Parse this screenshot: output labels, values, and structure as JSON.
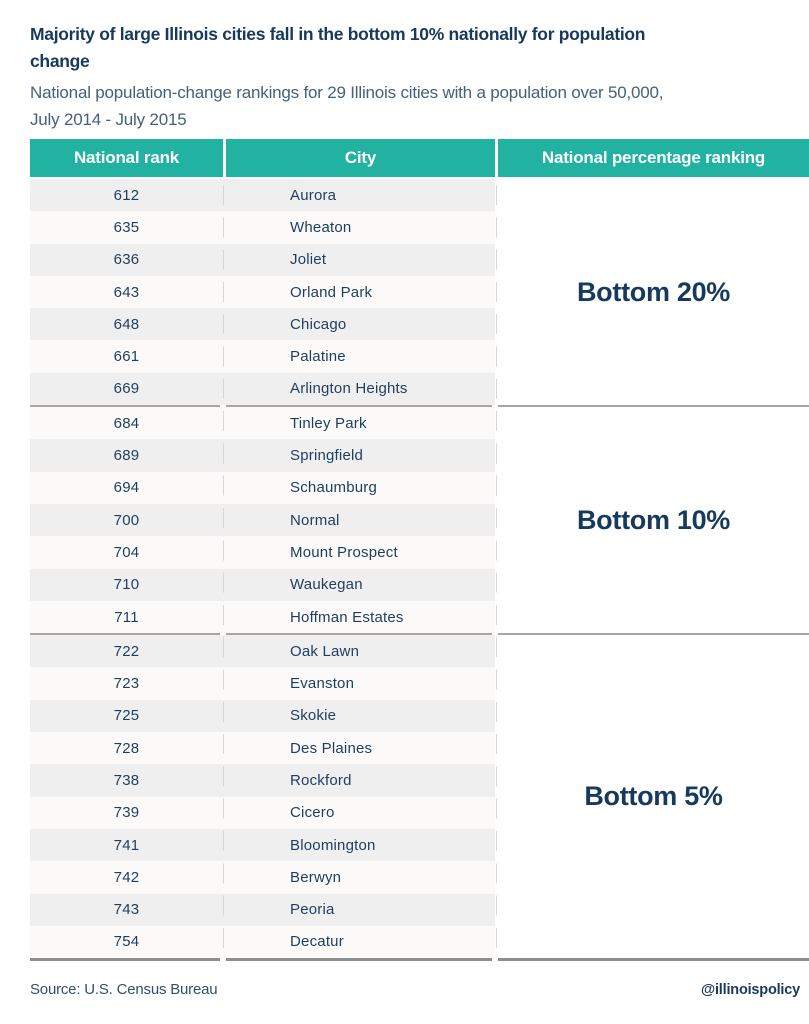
{
  "colors": {
    "header_teal": "#21b2a1",
    "title_navy": "#17395c",
    "subtitle_slate": "#44617a",
    "row_stripe_gray": "#efefef",
    "row_stripe_white": "#fbfaf9",
    "separator_gray": "#a6a6a6"
  },
  "header": {
    "title_lines": [
      "Majority of large Illinois cities fall in the bottom 10% nationally for population",
      "change"
    ],
    "subtitle_lines": [
      "National population-change rankings for 29 Illinois cities with a population over 50,000,",
      "July 2014 - July 2015"
    ]
  },
  "table": {
    "columns": [
      "National rank",
      "City",
      "National percentage ranking"
    ],
    "groups": [
      {
        "label": "Bottom 20%",
        "rows": [
          {
            "rank": "612",
            "city": "Aurora"
          },
          {
            "rank": "635",
            "city": "Wheaton"
          },
          {
            "rank": "636",
            "city": "Joliet"
          },
          {
            "rank": "643",
            "city": "Orland Park"
          },
          {
            "rank": "648",
            "city": "Chicago"
          },
          {
            "rank": "661",
            "city": "Palatine"
          },
          {
            "rank": "669",
            "city": "Arlington Heights"
          }
        ]
      },
      {
        "label": "Bottom 10%",
        "rows": [
          {
            "rank": "684",
            "city": "Tinley Park"
          },
          {
            "rank": "689",
            "city": "Springfield"
          },
          {
            "rank": "694",
            "city": "Schaumburg"
          },
          {
            "rank": "700",
            "city": "Normal"
          },
          {
            "rank": "704",
            "city": "Mount Prospect"
          },
          {
            "rank": "710",
            "city": "Waukegan"
          },
          {
            "rank": "711",
            "city": "Hoffman Estates"
          }
        ]
      },
      {
        "label": "Bottom 5%",
        "rows": [
          {
            "rank": "722",
            "city": "Oak Lawn"
          },
          {
            "rank": "723",
            "city": "Evanston"
          },
          {
            "rank": "725",
            "city": "Skokie"
          },
          {
            "rank": "728",
            "city": "Des Plaines"
          },
          {
            "rank": "738",
            "city": "Rockford"
          },
          {
            "rank": "739",
            "city": "Cicero"
          },
          {
            "rank": "741",
            "city": "Bloomington"
          },
          {
            "rank": "742",
            "city": "Berwyn"
          },
          {
            "rank": "743",
            "city": "Peoria"
          },
          {
            "rank": "754",
            "city": "Decatur"
          }
        ]
      }
    ]
  },
  "footer": {
    "source": "Source: U.S. Census Bureau",
    "handle": "@illinoispolicy"
  },
  "chart_data": {
    "type": "table",
    "title": "Majority of large Illinois cities fall in the bottom 10% nationally for population change",
    "subtitle": "National population-change rankings for 29 Illinois cities with a population over 50,000, July 2014 - July 2015",
    "columns": [
      "National rank",
      "City",
      "National percentage ranking"
    ],
    "rows": [
      [
        612,
        "Aurora",
        "Bottom 20%"
      ],
      [
        635,
        "Wheaton",
        "Bottom 20%"
      ],
      [
        636,
        "Joliet",
        "Bottom 20%"
      ],
      [
        643,
        "Orland Park",
        "Bottom 20%"
      ],
      [
        648,
        "Chicago",
        "Bottom 20%"
      ],
      [
        661,
        "Palatine",
        "Bottom 20%"
      ],
      [
        669,
        "Arlington Heights",
        "Bottom 20%"
      ],
      [
        684,
        "Tinley Park",
        "Bottom 10%"
      ],
      [
        689,
        "Springfield",
        "Bottom 10%"
      ],
      [
        694,
        "Schaumburg",
        "Bottom 10%"
      ],
      [
        700,
        "Normal",
        "Bottom 10%"
      ],
      [
        704,
        "Mount Prospect",
        "Bottom 10%"
      ],
      [
        710,
        "Waukegan",
        "Bottom 10%"
      ],
      [
        711,
        "Hoffman Estates",
        "Bottom 10%"
      ],
      [
        722,
        "Oak Lawn",
        "Bottom 5%"
      ],
      [
        723,
        "Evanston",
        "Bottom 5%"
      ],
      [
        725,
        "Skokie",
        "Bottom 5%"
      ],
      [
        728,
        "Des Plaines",
        "Bottom 5%"
      ],
      [
        738,
        "Rockford",
        "Bottom 5%"
      ],
      [
        739,
        "Cicero",
        "Bottom 5%"
      ],
      [
        741,
        "Bloomington",
        "Bottom 5%"
      ],
      [
        742,
        "Berwyn",
        "Bottom 5%"
      ],
      [
        743,
        "Peoria",
        "Bottom 5%"
      ],
      [
        754,
        "Decatur",
        "Bottom 5%"
      ]
    ],
    "source": "Source: U.S. Census Bureau"
  }
}
